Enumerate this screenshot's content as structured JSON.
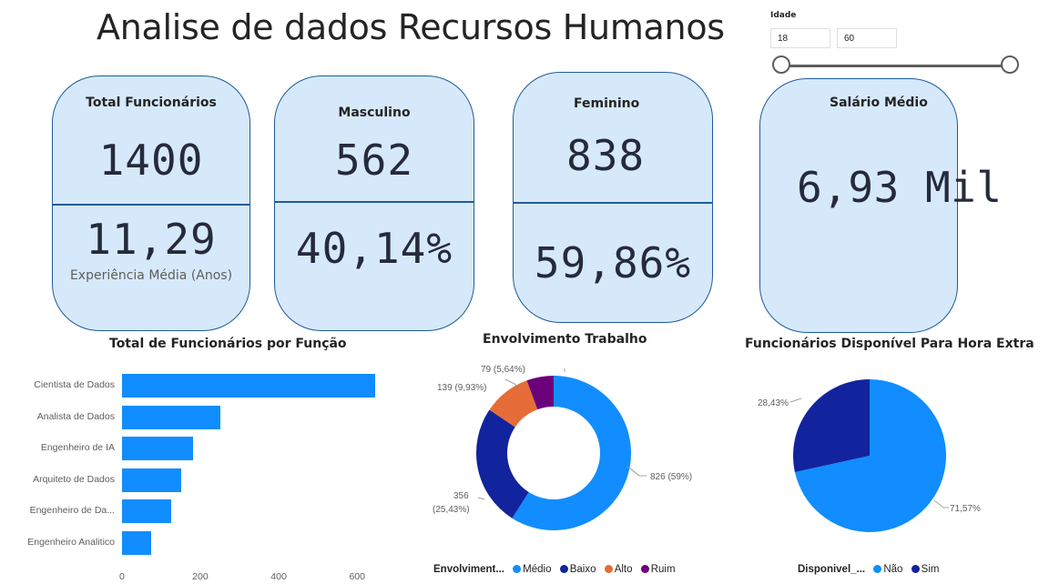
{
  "header": {
    "title": "Analise de dados Recursos Humanos"
  },
  "slicer": {
    "label": "Idade",
    "min": "18",
    "max": "60"
  },
  "cards": {
    "total": {
      "label": "Total Funcionários",
      "value": "1400",
      "sub_value": "11,29",
      "sub_label": "Experiência Média (Anos)"
    },
    "masculino": {
      "label": "Masculino",
      "value": "562",
      "percent": "40,14%"
    },
    "feminino": {
      "label": "Feminino",
      "value": "838",
      "percent": "59,86%"
    },
    "salario": {
      "label": "Salário Médio",
      "value": "6,93 Mil"
    }
  },
  "bar_chart": {
    "title": "Total de Funcionários por Função",
    "ticks": [
      "0",
      "200",
      "400",
      "600"
    ]
  },
  "donut_chart": {
    "title": "Envolvimento Trabalho",
    "labels": [
      "826 (59%)",
      "356",
      "(25,43%)",
      "139 (9,93%)",
      "79 (5,64%)"
    ],
    "legend_title": "Envolviment...",
    "legend_items": [
      "Médio",
      "Baixo",
      "Alto",
      "Ruim"
    ]
  },
  "pie_chart": {
    "title": "Funcionários Disponível Para Hora Extra",
    "labels": [
      "71,57%",
      "28,43%"
    ],
    "legend_title": "Disponivel_...",
    "legend_items": [
      "Não",
      "Sim"
    ]
  },
  "colors": {
    "primary": "#118dff",
    "dark_blue": "#12239e",
    "orange": "#e66c37",
    "purple": "#6b007b",
    "card_bg": "#d6e9fb",
    "card_border": "#1f5b9b"
  },
  "chart_data": [
    {
      "type": "bar",
      "title": "Total de Funcionários por Função",
      "orientation": "horizontal",
      "categories": [
        "Cientista de Dados",
        "Analista de Dados",
        "Engenheiro de IA",
        "Arquiteto de Dados",
        "Engenheiro de Da...",
        "Engenheiro Analitico"
      ],
      "values": [
        645,
        250,
        180,
        150,
        125,
        75
      ],
      "xlim": [
        0,
        650
      ]
    },
    {
      "type": "pie",
      "title": "Envolvimento Trabalho",
      "donut": true,
      "categories": [
        "Médio",
        "Baixo",
        "Alto",
        "Ruim"
      ],
      "values": [
        826,
        356,
        139,
        79
      ],
      "colors": [
        "#118dff",
        "#12239e",
        "#e66c37",
        "#6b007b"
      ]
    },
    {
      "type": "pie",
      "title": "Funcionários Disponível Para Hora Extra",
      "categories": [
        "Não",
        "Sim"
      ],
      "values": [
        71.57,
        28.43
      ],
      "colors": [
        "#118dff",
        "#12239e"
      ]
    }
  ]
}
